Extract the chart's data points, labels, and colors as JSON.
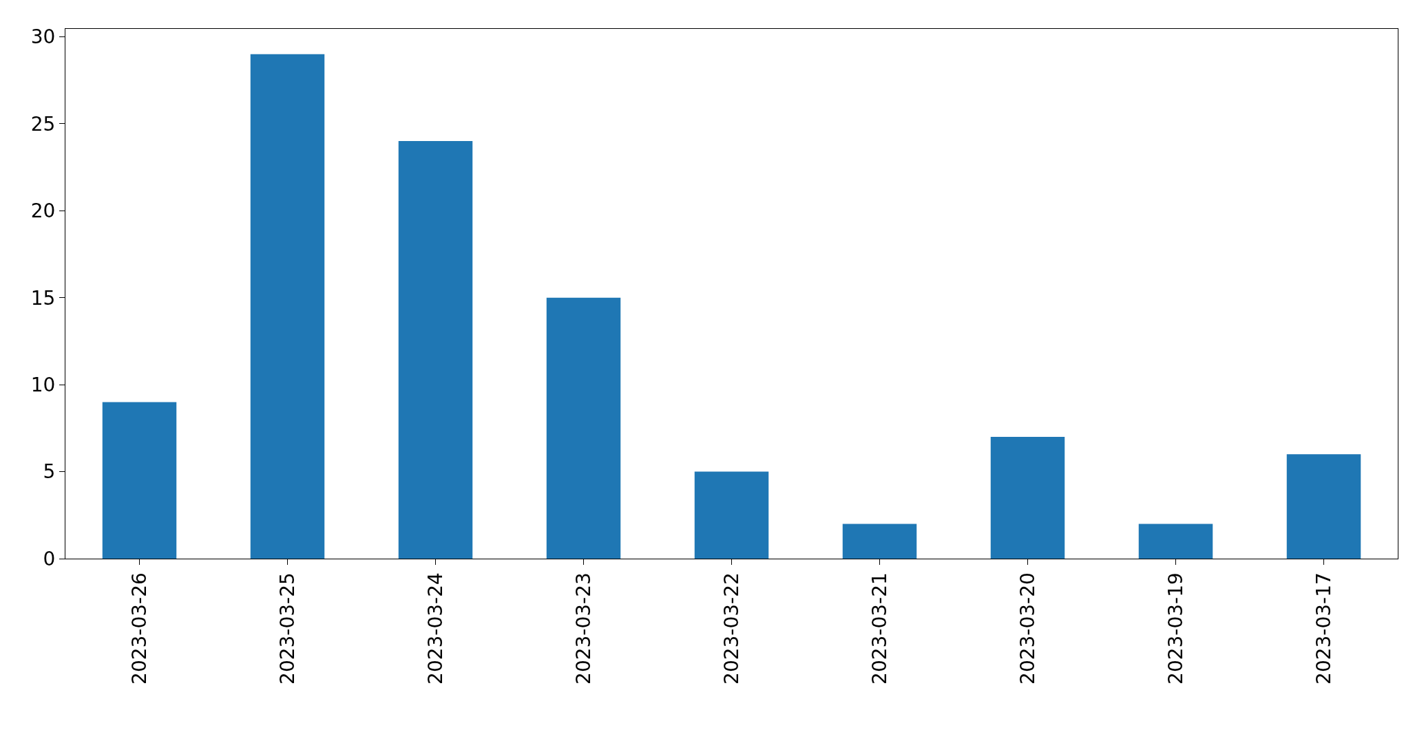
{
  "chart_data": {
    "type": "bar",
    "categories": [
      "2023-03-26",
      "2023-03-25",
      "2023-03-24",
      "2023-03-23",
      "2023-03-22",
      "2023-03-21",
      "2023-03-20",
      "2023-03-19",
      "2023-03-17"
    ],
    "values": [
      9,
      29,
      24,
      15,
      5,
      2,
      7,
      2,
      6
    ],
    "color": "#1f77b4",
    "ylim": [
      0,
      30.45
    ],
    "yticks": [
      0,
      5,
      10,
      15,
      20,
      25,
      30
    ]
  }
}
